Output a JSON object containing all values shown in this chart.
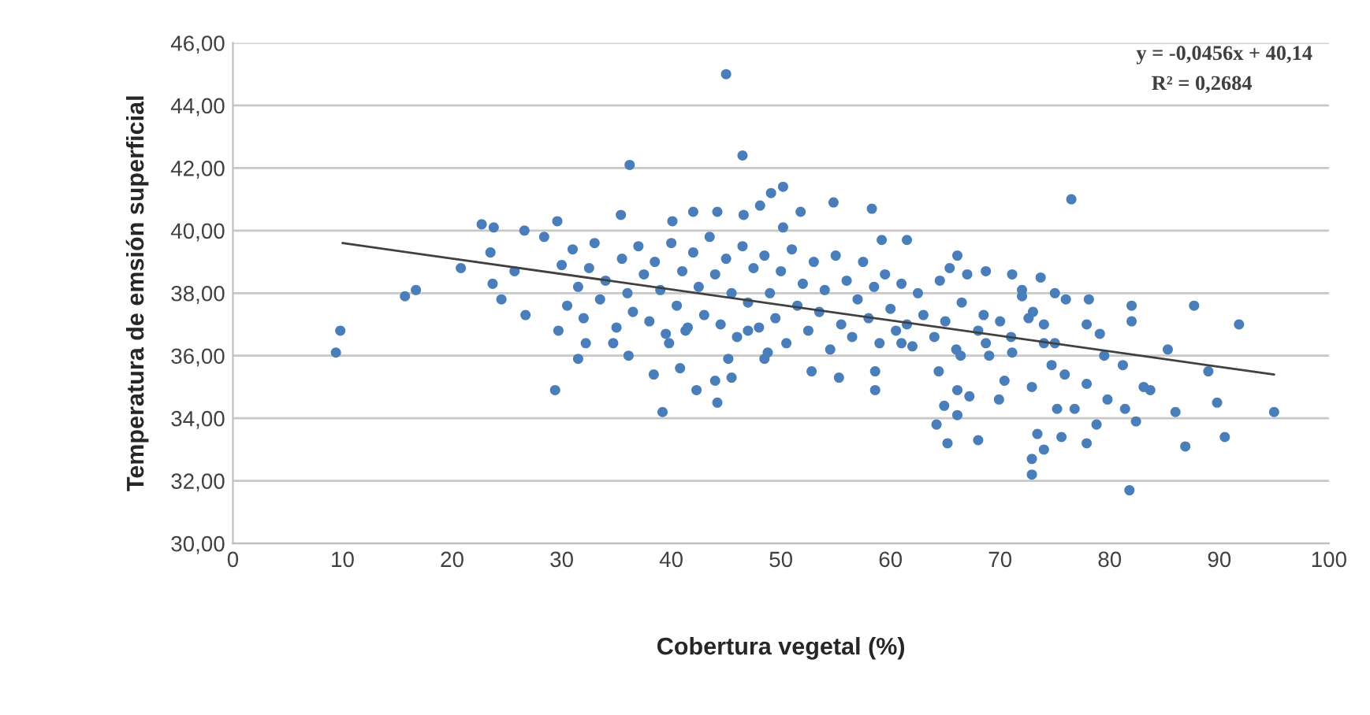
{
  "chart_data": {
    "type": "scatter",
    "xlabel": "Cobertura vegetal (%)",
    "ylabel": "Temperatura de emsión superficial",
    "annotations": [
      "y = -0,0456x + 40,14",
      "R² = 0,2684"
    ],
    "xlim": [
      0,
      100
    ],
    "xticks": [
      0,
      10,
      20,
      30,
      40,
      50,
      60,
      70,
      80,
      90,
      100
    ],
    "ylim": [
      30,
      46
    ],
    "yticks": [
      {
        "value": 30,
        "label": "30,00"
      },
      {
        "value": 32,
        "label": "32,00"
      },
      {
        "value": 34,
        "label": "34,00"
      },
      {
        "value": 36,
        "label": "36,00"
      },
      {
        "value": 38,
        "label": "38,00"
      },
      {
        "value": 40,
        "label": "40,00"
      },
      {
        "value": 42,
        "label": "42,00"
      },
      {
        "value": 44,
        "label": "44,00"
      },
      {
        "value": 46,
        "label": "46,00"
      }
    ],
    "grid": "y",
    "marker": "circle",
    "series": [
      {
        "color": "#4a7ebb",
        "x": [
          9.4,
          9.8,
          15.7,
          16.7,
          20.8,
          22.7,
          23.8,
          23.5,
          23.7,
          26.6,
          24.5,
          25.7,
          26.7,
          29.4,
          29.7,
          29.6,
          28.4,
          32.2,
          31.5,
          35.4,
          36.2,
          36.1,
          34.7,
          38.4,
          39.2,
          39.8,
          41.3,
          40.8,
          42.3,
          44.0,
          44.2,
          45.5,
          45.0,
          46.5,
          42.0,
          40.1,
          44.2,
          48.1,
          50.2,
          46.6,
          48.5,
          45.2,
          47.0,
          49.1,
          51.8,
          50.2,
          54.8,
          58.3,
          59.2,
          61.5,
          65.4,
          66.1,
          68.7,
          71.1,
          72.0,
          73.7,
          55.3,
          58.6,
          52.8,
          48.8,
          58.6,
          61.0,
          64.4,
          66.4,
          68.7,
          71.1,
          72.6,
          74.0,
          75.0,
          76.5,
          76.0,
          78.1,
          77.9,
          79.1,
          79.5,
          81.2,
          83.1,
          83.7,
          79.8,
          81.4,
          82.4,
          78.8,
          77.9,
          75.6,
          73.4,
          74.0,
          72.9,
          72.9,
          81.8,
          85.3,
          86.0,
          89.0,
          89.8,
          86.9,
          90.5,
          95.0,
          91.8,
          87.7,
          82.0,
          82.0,
          76.8,
          75.2,
          77.9,
          75.9,
          74.7,
          72.9,
          70.4,
          69.9,
          68.0,
          65.2,
          64.2,
          64.9,
          66.1,
          67.2,
          66.1,
          30.0,
          30.5,
          31.0,
          31.5,
          32.0,
          32.5,
          33.0,
          33.5,
          34.0,
          35.0,
          35.5,
          36.0,
          36.5,
          37.0,
          37.5,
          38.0,
          38.5,
          39.0,
          39.5,
          40.0,
          40.5,
          41.0,
          41.5,
          42.0,
          42.5,
          43.0,
          43.5,
          44.0,
          44.5,
          45.0,
          45.5,
          46.0,
          46.5,
          47.0,
          47.5,
          48.0,
          48.5,
          49.0,
          49.5,
          50.0,
          50.5,
          51.0,
          51.5,
          52.0,
          52.5,
          53.0,
          53.5,
          54.0,
          54.5,
          55.0,
          55.5,
          56.0,
          56.5,
          57.0,
          57.5,
          58.0,
          58.5,
          59.0,
          59.5,
          60.0,
          60.5,
          61.0,
          61.5,
          62.0,
          62.5,
          63.0,
          64.0,
          64.5,
          65.0,
          66.0,
          66.5,
          67.0,
          68.0,
          68.5,
          69.0,
          70.0,
          71.0,
          72.0,
          73.0,
          74.0,
          75.0
        ],
        "values": [
          36.1,
          36.8,
          37.9,
          38.1,
          38.8,
          40.2,
          40.1,
          39.3,
          38.3,
          40.0,
          37.8,
          38.7,
          37.3,
          34.9,
          36.8,
          40.3,
          39.8,
          36.4,
          35.9,
          40.5,
          42.1,
          36.0,
          36.4,
          35.4,
          34.2,
          36.4,
          36.8,
          35.6,
          34.9,
          35.2,
          34.5,
          35.3,
          45.0,
          42.4,
          40.6,
          40.3,
          40.6,
          40.8,
          41.4,
          40.5,
          35.9,
          35.9,
          36.8,
          41.2,
          40.6,
          40.1,
          40.9,
          40.7,
          39.7,
          39.7,
          38.8,
          39.2,
          38.7,
          38.6,
          37.9,
          38.5,
          35.3,
          34.9,
          35.5,
          36.1,
          35.5,
          36.4,
          35.5,
          36.0,
          36.4,
          36.1,
          37.2,
          36.4,
          36.4,
          41.0,
          37.8,
          37.8,
          37.0,
          36.7,
          36.0,
          35.7,
          35.0,
          34.9,
          34.6,
          34.3,
          33.9,
          33.8,
          33.2,
          33.4,
          33.5,
          33.0,
          32.2,
          32.7,
          31.7,
          36.2,
          34.2,
          35.5,
          34.5,
          33.1,
          33.4,
          34.2,
          37.0,
          37.6,
          37.6,
          37.1,
          34.3,
          34.3,
          35.1,
          35.4,
          35.7,
          35.0,
          35.2,
          34.6,
          33.3,
          33.2,
          33.8,
          34.4,
          34.1,
          34.7,
          34.9,
          38.9,
          37.6,
          39.4,
          38.2,
          37.2,
          38.8,
          39.6,
          37.8,
          38.4,
          36.9,
          39.1,
          38.0,
          37.4,
          39.5,
          38.6,
          37.1,
          39.0,
          38.1,
          36.7,
          39.6,
          37.6,
          38.7,
          36.9,
          39.3,
          38.2,
          37.3,
          39.8,
          38.6,
          37.0,
          39.1,
          38.0,
          36.6,
          39.5,
          37.7,
          38.8,
          36.9,
          39.2,
          38.0,
          37.2,
          38.7,
          36.4,
          39.4,
          37.6,
          38.3,
          36.8,
          39.0,
          37.4,
          38.1,
          36.2,
          39.2,
          37.0,
          38.4,
          36.6,
          37.8,
          39.0,
          37.2,
          38.2,
          36.4,
          38.6,
          37.5,
          36.8,
          38.3,
          37.0,
          36.3,
          38.0,
          37.3,
          36.6,
          38.4,
          37.1,
          36.2,
          37.7,
          38.6,
          36.8,
          37.3,
          36.0,
          37.1,
          36.6,
          38.1,
          37.4,
          37.0,
          38.0
        ]
      },
      {
        "type": "line",
        "color": "#404040",
        "marker": "none",
        "x": [
          10,
          95
        ],
        "values": [
          39.6,
          35.4
        ]
      }
    ]
  }
}
